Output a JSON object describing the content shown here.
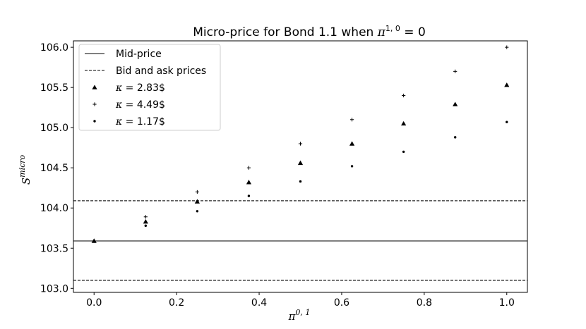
{
  "chart_data": {
    "type": "scatter",
    "title": "Micro-price for Bond 1.1 when π^{1,0} = 0",
    "title_parts": {
      "prefix": "Micro-price for Bond 1.1 when ",
      "sym": "π",
      "sup": "1, 0",
      "suffix": " = 0"
    },
    "xlabel": {
      "sym": "π",
      "sup": "0, 1"
    },
    "ylabel": {
      "sym": "S",
      "sup": "micro"
    },
    "xlim": [
      -0.05,
      1.05
    ],
    "ylim": [
      102.95,
      106.08
    ],
    "xticks": [
      0.0,
      0.2,
      0.4,
      0.6,
      0.8,
      1.0
    ],
    "xtick_labels": [
      "0.0",
      "0.2",
      "0.4",
      "0.6",
      "0.8",
      "1.0"
    ],
    "yticks": [
      103.0,
      103.5,
      104.0,
      104.5,
      105.0,
      105.5,
      106.0
    ],
    "ytick_labels": [
      "103.0",
      "103.5",
      "104.0",
      "104.5",
      "105.0",
      "105.5",
      "106.0"
    ],
    "grid": false,
    "legend_position": "top-left",
    "hlines": [
      {
        "name": "Mid-price",
        "y": 103.59,
        "style": "solid"
      },
      {
        "name": "Bid and ask prices",
        "y": 103.1,
        "style": "dashed"
      },
      {
        "name": "Bid and ask prices",
        "y": 104.09,
        "style": "dashed"
      }
    ],
    "legend": [
      {
        "label": "Mid-price",
        "kind": "line",
        "style": "solid"
      },
      {
        "label": "Bid and ask prices",
        "kind": "line",
        "style": "dashed"
      },
      {
        "label_math": "κ",
        "label_rest": " = 2.83$",
        "kind": "marker",
        "marker": "triangle"
      },
      {
        "label_math": "κ",
        "label_rest": " = 4.49$",
        "kind": "marker",
        "marker": "plus"
      },
      {
        "label_math": "κ",
        "label_rest": " = 1.17$",
        "kind": "marker",
        "marker": "dot"
      }
    ],
    "series": [
      {
        "name": "κ = 2.83$",
        "marker": "triangle",
        "x": [
          0.0,
          0.125,
          0.25,
          0.375,
          0.5,
          0.625,
          0.75,
          0.875,
          1.0
        ],
        "y": [
          103.59,
          103.83,
          104.08,
          104.32,
          104.56,
          104.8,
          105.05,
          105.29,
          105.53
        ]
      },
      {
        "name": "κ = 4.49$",
        "marker": "plus",
        "x": [
          0.0,
          0.125,
          0.25,
          0.375,
          0.5,
          0.625,
          0.75,
          0.875,
          1.0
        ],
        "y": [
          103.59,
          103.89,
          104.2,
          104.5,
          104.8,
          105.1,
          105.4,
          105.7,
          106.0
        ]
      },
      {
        "name": "κ = 1.17$",
        "marker": "dot",
        "x": [
          0.0,
          0.125,
          0.25,
          0.375,
          0.5,
          0.625,
          0.75,
          0.875,
          1.0
        ],
        "y": [
          103.59,
          103.78,
          103.96,
          104.15,
          104.33,
          104.52,
          104.7,
          104.88,
          105.07
        ]
      }
    ],
    "colors": {
      "ink": "#000000",
      "background": "#ffffff"
    }
  }
}
